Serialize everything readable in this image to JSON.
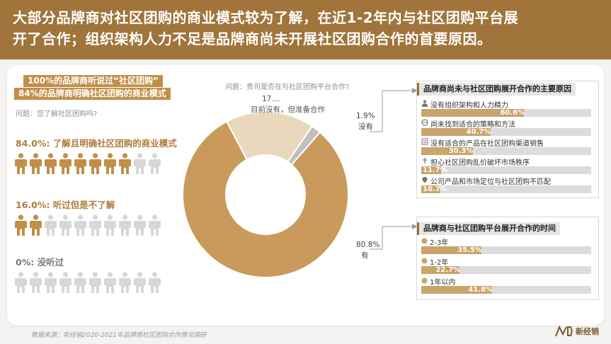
{
  "header": {
    "line1": "大部分品牌商对社区团购的商业模式较为了解，在近1-2年内与社区团购平台展",
    "line2": "开了合作；组织架构人力不足是品牌商尚未开展社区团购合作的首要原因。"
  },
  "left": {
    "highlight1": "100%的品牌商听说过“社区团购”",
    "highlight2": "84%的品牌商明确社区团购的商业模式",
    "question": "问题：您了解社区团购吗?",
    "groups": [
      {
        "label": "84.0%: 了解且明确社区团购的商业模式",
        "filled": 8,
        "total": 10,
        "color": "#c18f49"
      },
      {
        "label": "16.0%: 听过但是不了解",
        "filled": 2,
        "total": 10,
        "color": "#c18f49"
      },
      {
        "label": "0%: 没听过",
        "filled": 0,
        "total": 10,
        "color": "#777777"
      }
    ]
  },
  "center": {
    "question": "问题：贵司是否在与社区团购平台合作?",
    "donut_center": [
      "贵司是否在",
      "与社区团购",
      "平台合作?"
    ],
    "labels": {
      "prep_value": "17....",
      "prep_text": "目前没有，但准备合作",
      "no_value": "1.9%",
      "no_text": "没有",
      "yes_value": "80.8%",
      "yes_text": "有"
    }
  },
  "right": {
    "reasons_title": "品牌商尚未与社区团购展开合作的主要原因",
    "time_title": "品牌商与社区团购平台展开合作的时间"
  },
  "chart_data": [
    {
      "type": "pie",
      "title": "贵司是否在与社区团购平台合作?",
      "categories": [
        "有",
        "目前没有，但准备合作",
        "没有"
      ],
      "values": [
        80.8,
        17.3,
        1.9
      ],
      "colors": [
        "#c99a5b",
        "#ead8bd",
        "#bfbfbf"
      ]
    },
    {
      "type": "bar",
      "title": "品牌商尚未与社区团购展开合作的主要原因",
      "categories": [
        "没有组织架构和人力精力",
        "尚未找到适合的策略和方法",
        "没有适合的产品在社区团购渠道销售",
        "担心社区团购乱价破坏市场秩序",
        "公司产品和市场定位与社区团购不匹配"
      ],
      "values": [
        60.6,
        40.7,
        30.3,
        11.7,
        10.7
      ],
      "labels": [
        "60.6%",
        "40.7%",
        "30.3%",
        "11.7%",
        "10.7%"
      ],
      "icons": [
        "people-icon",
        "globe-icon",
        "list-icon",
        "pin-icon",
        "location-icon"
      ],
      "xlim": [
        0,
        100
      ]
    },
    {
      "type": "bar",
      "title": "品牌商与社区团购平台展开合作的时间",
      "categories": [
        "2-3年",
        "1-2年",
        "1年以内"
      ],
      "values": [
        35.5,
        22.7,
        41.8
      ],
      "labels": [
        "35.5%",
        "22.7%",
        "41.8%"
      ],
      "xlim": [
        0,
        100
      ]
    }
  ],
  "footer": {
    "source": "数据来源：新经销2020-2021年品牌商社区团购合作情况调研",
    "logo": "新经销"
  }
}
